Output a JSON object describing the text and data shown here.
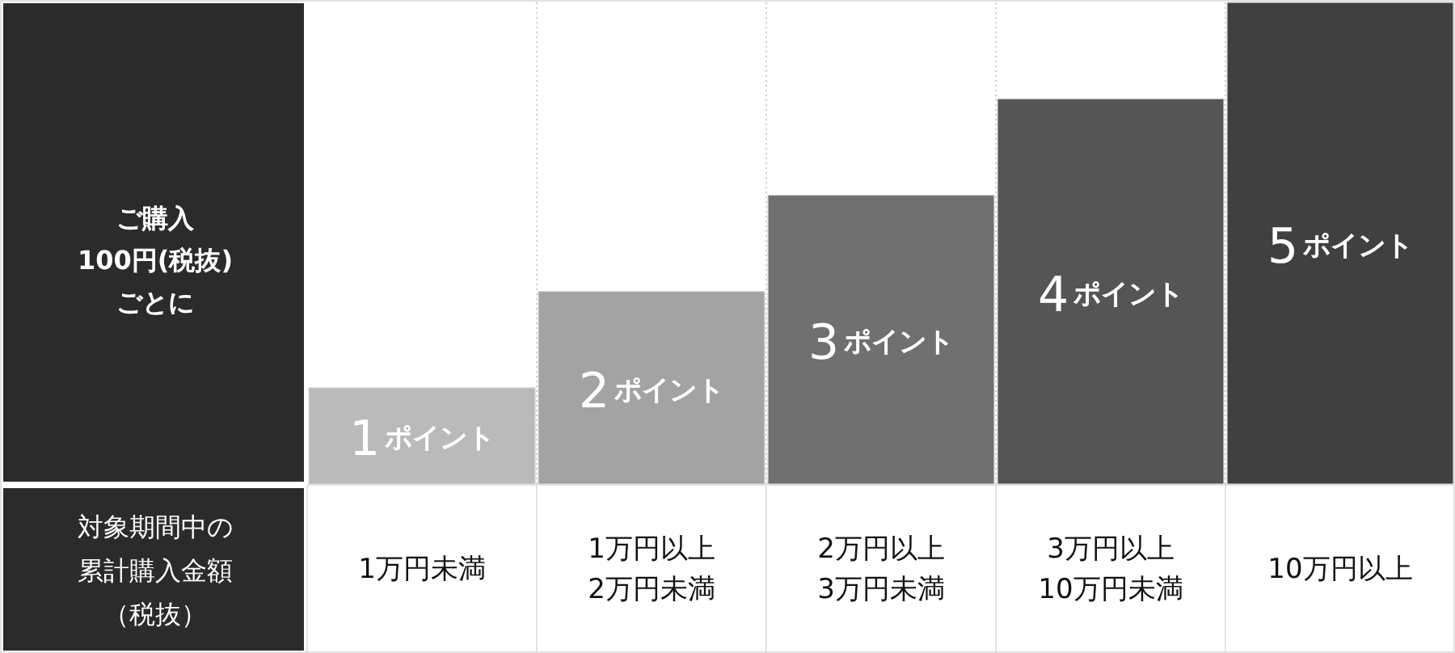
{
  "chart_data": {
    "type": "bar",
    "ylabel": "ご購入\n100円(税抜)\nごとに",
    "xlabel": "対象期間中の累計購入金額（税抜）",
    "categories": [
      "1万円未満",
      "1万円以上\n2万円未満",
      "2万円以上\n3万円未満",
      "3万円以上\n10万円未満",
      "10万円以上"
    ],
    "values": [
      1,
      2,
      3,
      4,
      5
    ],
    "colors": [
      "#bababa",
      "#a3a3a3",
      "#707070",
      "#555555",
      "#404040"
    ],
    "ylim": [
      0,
      5
    ],
    "value_labels": [
      "1ポイント",
      "2ポイント",
      "3ポイント",
      "4ポイント",
      "5ポイント"
    ],
    "grid": "x"
  }
}
